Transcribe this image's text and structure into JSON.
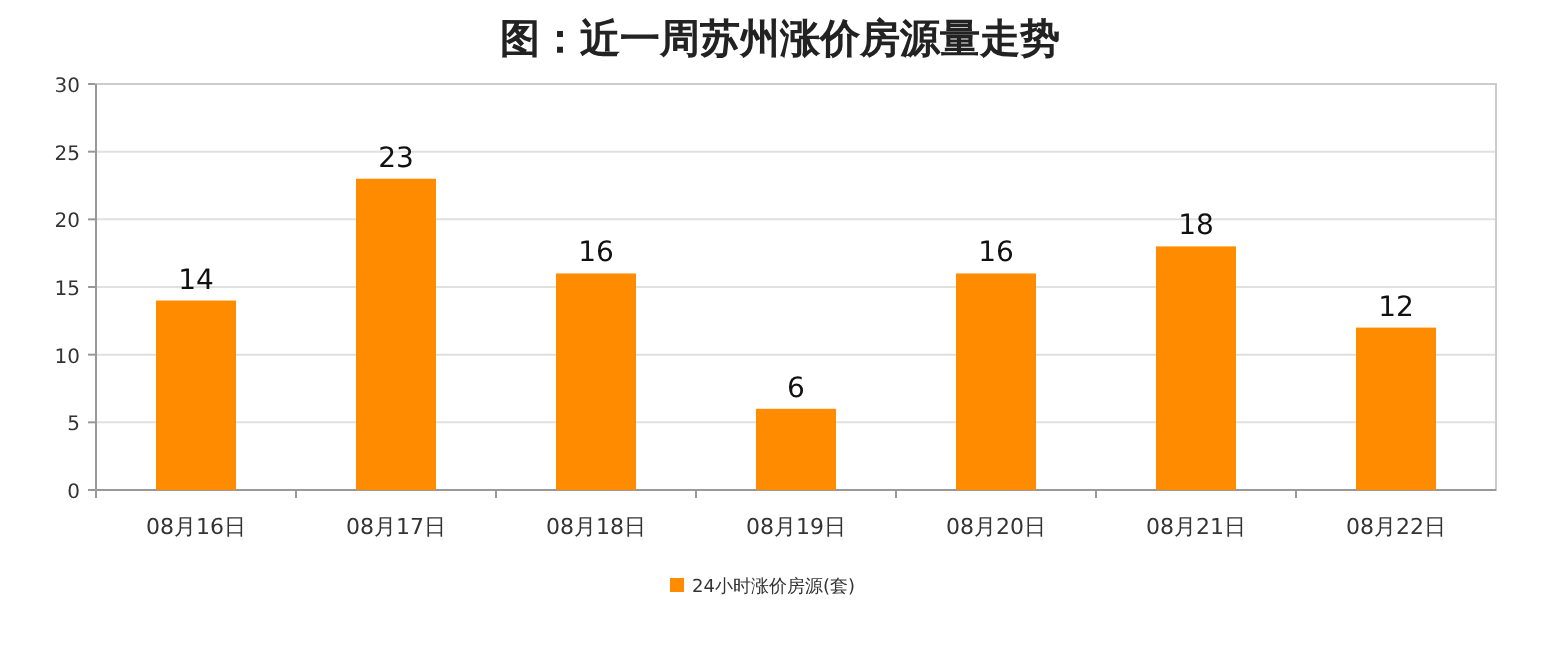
{
  "chart_data": {
    "type": "bar",
    "title": "图：近一周苏州涨价房源量走势",
    "categories": [
      "08月16日",
      "08月17日",
      "08月18日",
      "08月19日",
      "08月20日",
      "08月21日",
      "08月22日"
    ],
    "series": [
      {
        "name": "24小时涨价房源(套)",
        "color": "#ff8c00",
        "values": [
          14,
          23,
          16,
          6,
          16,
          18,
          12
        ]
      }
    ],
    "ylim": [
      0,
      30
    ],
    "yticks": [
      0,
      5,
      10,
      15,
      20,
      25,
      30
    ],
    "grid": "y",
    "legend": "bottom",
    "data_labels": true
  }
}
